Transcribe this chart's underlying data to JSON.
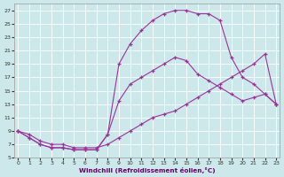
{
  "bg_color": "#cde8ea",
  "grid_color": "#b8d8da",
  "line_color": "#993399",
  "xlim": [
    0,
    23
  ],
  "ylim": [
    5,
    28
  ],
  "xticks": [
    0,
    1,
    2,
    3,
    4,
    5,
    6,
    7,
    8,
    9,
    10,
    11,
    12,
    13,
    14,
    15,
    16,
    17,
    18,
    19,
    20,
    21,
    22,
    23
  ],
  "yticks": [
    5,
    7,
    9,
    11,
    13,
    15,
    17,
    19,
    21,
    23,
    25,
    27
  ],
  "xlabel": "Windchill (Refroidissement éolien,°C)",
  "s1_x": [
    0,
    1,
    2,
    3,
    4,
    5,
    6,
    7,
    8,
    9,
    10,
    11,
    12,
    13,
    14,
    15,
    16,
    17,
    18,
    19,
    20,
    21,
    22,
    23
  ],
  "s1_y": [
    9,
    8,
    7,
    6.5,
    6.5,
    6.2,
    6.2,
    6.2,
    8.5,
    19.0,
    22.0,
    24.0,
    25.5,
    26.5,
    27.0,
    27.0,
    26.5,
    26.5,
    25.5,
    20.0,
    17.0,
    16.0,
    14.5,
    13.0
  ],
  "s2_x": [
    0,
    1,
    2,
    3,
    4,
    5,
    6,
    7,
    8,
    9,
    10,
    11,
    12,
    13,
    14,
    15,
    16,
    17,
    18,
    19,
    20,
    21,
    22,
    23
  ],
  "s2_y": [
    9,
    8,
    7,
    6.5,
    6.5,
    6.2,
    6.2,
    6.2,
    8.5,
    13.5,
    16.0,
    17.0,
    18.0,
    19.0,
    20.0,
    19.5,
    17.5,
    16.5,
    15.5,
    14.5,
    13.5,
    14.0,
    14.5,
    13.0
  ],
  "s3_x": [
    0,
    1,
    2,
    3,
    4,
    5,
    6,
    7,
    8,
    9,
    10,
    11,
    12,
    13,
    14,
    15,
    16,
    17,
    18,
    19,
    20,
    21,
    22,
    23
  ],
  "s3_y": [
    9,
    8.5,
    7.5,
    7.0,
    7.0,
    6.5,
    6.5,
    6.5,
    7.0,
    8.0,
    9.0,
    10.0,
    11.0,
    11.5,
    12.0,
    13.0,
    14.0,
    15.0,
    16.0,
    17.0,
    18.0,
    19.0,
    20.5,
    13.0
  ]
}
